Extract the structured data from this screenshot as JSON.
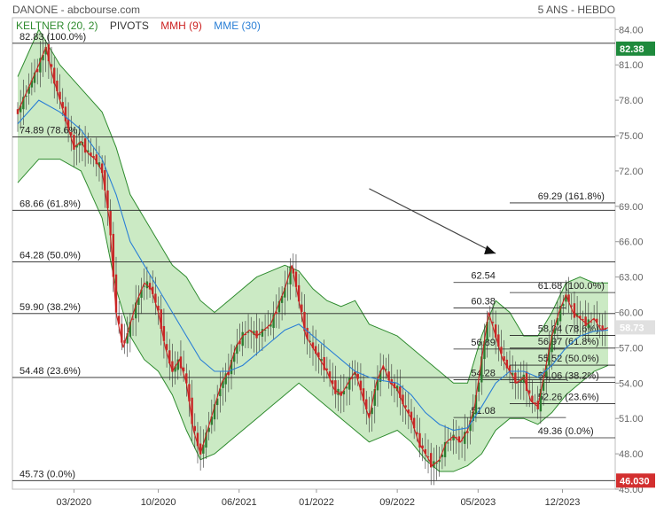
{
  "header": {
    "symbol": "DANONE - abcbourse.com",
    "period": "5 ANS - HEBDO"
  },
  "legend": {
    "keltner": "KELTNER (20, 2)",
    "pivots": "PIVOTS",
    "mmh": "MMH (9)",
    "mme": "MME (30)"
  },
  "colors": {
    "keltner_band": "#b9e3b0",
    "keltner_line": "#2e8b2e",
    "mmh": "#cc2222",
    "mme": "#2a7fd6",
    "candle_up": "#2e7d32",
    "candle_down": "#c62828",
    "tag_last": "#1e8a3c",
    "tag_low": "#d32f2f"
  },
  "chart_data": {
    "type": "line",
    "title": "DANONE",
    "y_ticks": [
      "84.00",
      "81.00",
      "78.00",
      "75.00",
      "72.00",
      "69.00",
      "66.00",
      "63.00",
      "60.00",
      "57.00",
      "54.00",
      "51.00",
      "48.00",
      "45.00"
    ],
    "x_ticks": [
      "03/2020",
      "10/2020",
      "06/2021",
      "01/2022",
      "09/2022",
      "05/2023",
      "12/2023"
    ],
    "ylim": [
      45,
      85
    ],
    "last_value_tag": "82.38",
    "current_tag": "58.73",
    "low_tag": "46.030",
    "fib_left": [
      {
        "label": "82.83 (100.0%)",
        "value": 82.83
      },
      {
        "label": "74.89 (78.6%)",
        "value": 74.89
      },
      {
        "label": "68.66 (61.8%)",
        "value": 68.66
      },
      {
        "label": "64.28 (50.0%)",
        "value": 64.28
      },
      {
        "label": "59.90 (38.2%)",
        "value": 59.9
      },
      {
        "label": "54.48 (23.6%)",
        "value": 54.48
      },
      {
        "label": "45.73 (0.0%)",
        "value": 45.73
      }
    ],
    "fib_right": [
      {
        "label": "69.29 (161.8%)",
        "value": 69.29
      },
      {
        "label": "61.68 (100.0%)",
        "value": 61.68
      },
      {
        "label": "58.04 (78.6%)",
        "value": 58.04
      },
      {
        "label": "56.97 (61.8%)",
        "value": 56.97
      },
      {
        "label": "55.52 (50.0%)",
        "value": 55.52
      },
      {
        "label": "54.06 (38.2%)",
        "value": 54.06
      },
      {
        "label": "52.26 (23.6%)",
        "value": 52.26
      },
      {
        "label": "49.36 (0.0%)",
        "value": 49.36
      }
    ],
    "pivots": [
      {
        "label": "62.54",
        "value": 62.54
      },
      {
        "label": "60.38",
        "value": 60.38
      },
      {
        "label": "56.89",
        "value": 56.89
      },
      {
        "label": "54.28",
        "value": 54.28
      },
      {
        "label": "51.08",
        "value": 51.08
      }
    ],
    "price_series": [
      [
        0,
        77
      ],
      [
        3,
        79
      ],
      [
        6,
        81
      ],
      [
        8,
        82.5
      ],
      [
        10,
        80
      ],
      [
        12,
        78
      ],
      [
        14,
        76
      ],
      [
        16,
        74
      ],
      [
        18,
        74.5
      ],
      [
        20,
        73.5
      ],
      [
        22,
        73
      ],
      [
        24,
        72
      ],
      [
        26,
        68
      ],
      [
        28,
        60
      ],
      [
        30,
        57
      ],
      [
        32,
        59
      ],
      [
        34,
        61
      ],
      [
        36,
        62.5
      ],
      [
        38,
        62
      ],
      [
        40,
        60
      ],
      [
        42,
        57
      ],
      [
        44,
        55
      ],
      [
        46,
        56
      ],
      [
        48,
        54
      ],
      [
        50,
        50
      ],
      [
        52,
        48
      ],
      [
        54,
        50
      ],
      [
        56,
        52
      ],
      [
        58,
        54
      ],
      [
        60,
        55
      ],
      [
        62,
        57
      ],
      [
        64,
        58
      ],
      [
        66,
        58.5
      ],
      [
        68,
        58
      ],
      [
        70,
        58.5
      ],
      [
        72,
        59
      ],
      [
        74,
        60.5
      ],
      [
        76,
        62
      ],
      [
        78,
        64
      ],
      [
        80,
        61
      ],
      [
        82,
        58
      ],
      [
        84,
        57
      ],
      [
        86,
        56
      ],
      [
        88,
        55
      ],
      [
        90,
        53.5
      ],
      [
        92,
        53
      ],
      [
        94,
        54
      ],
      [
        96,
        55
      ],
      [
        98,
        53
      ],
      [
        100,
        51
      ],
      [
        102,
        54
      ],
      [
        104,
        55.5
      ],
      [
        106,
        54
      ],
      [
        108,
        53.5
      ],
      [
        110,
        52
      ],
      [
        112,
        51
      ],
      [
        114,
        49
      ],
      [
        116,
        48
      ],
      [
        118,
        47
      ],
      [
        120,
        47.5
      ],
      [
        122,
        49
      ],
      [
        124,
        49.5
      ],
      [
        126,
        49
      ],
      [
        128,
        50
      ],
      [
        130,
        52
      ],
      [
        132,
        56
      ],
      [
        134,
        60
      ],
      [
        136,
        58
      ],
      [
        138,
        56
      ],
      [
        140,
        55
      ],
      [
        142,
        54
      ],
      [
        144,
        54.5
      ],
      [
        146,
        52.5
      ],
      [
        148,
        52
      ],
      [
        150,
        55
      ],
      [
        152,
        58
      ],
      [
        154,
        60
      ],
      [
        156,
        61.5
      ],
      [
        158,
        60
      ],
      [
        160,
        59.5
      ],
      [
        162,
        59
      ],
      [
        164,
        59.5
      ],
      [
        166,
        58.5
      ],
      [
        168,
        58.7
      ]
    ],
    "mme_series": [
      [
        0,
        76
      ],
      [
        6,
        78
      ],
      [
        12,
        77
      ],
      [
        18,
        75.5
      ],
      [
        24,
        73
      ],
      [
        28,
        70
      ],
      [
        32,
        66
      ],
      [
        36,
        64
      ],
      [
        40,
        62
      ],
      [
        44,
        60
      ],
      [
        48,
        58
      ],
      [
        52,
        56
      ],
      [
        56,
        55
      ],
      [
        60,
        55
      ],
      [
        64,
        55.5
      ],
      [
        68,
        56.5
      ],
      [
        72,
        57.5
      ],
      [
        76,
        58.5
      ],
      [
        80,
        59
      ],
      [
        84,
        58
      ],
      [
        88,
        57
      ],
      [
        92,
        56
      ],
      [
        96,
        55
      ],
      [
        100,
        54.5
      ],
      [
        104,
        54.2
      ],
      [
        108,
        54
      ],
      [
        112,
        53
      ],
      [
        116,
        51.5
      ],
      [
        120,
        50.5
      ],
      [
        124,
        50
      ],
      [
        128,
        50.2
      ],
      [
        132,
        52
      ],
      [
        136,
        54
      ],
      [
        140,
        55
      ],
      [
        144,
        55
      ],
      [
        148,
        54.5
      ],
      [
        152,
        55.5
      ],
      [
        156,
        57
      ],
      [
        160,
        58
      ],
      [
        164,
        58.4
      ],
      [
        168,
        58.5
      ]
    ],
    "band_upper": [
      [
        0,
        80
      ],
      [
        6,
        84
      ],
      [
        12,
        81
      ],
      [
        18,
        79
      ],
      [
        24,
        77
      ],
      [
        28,
        74
      ],
      [
        32,
        70
      ],
      [
        36,
        68
      ],
      [
        40,
        66
      ],
      [
        44,
        64
      ],
      [
        48,
        63
      ],
      [
        52,
        61
      ],
      [
        56,
        60
      ],
      [
        60,
        61
      ],
      [
        64,
        62
      ],
      [
        68,
        63
      ],
      [
        72,
        63.5
      ],
      [
        76,
        64
      ],
      [
        80,
        63.5
      ],
      [
        84,
        62
      ],
      [
        88,
        61
      ],
      [
        92,
        60.5
      ],
      [
        96,
        61
      ],
      [
        100,
        59
      ],
      [
        104,
        58.5
      ],
      [
        108,
        58
      ],
      [
        112,
        57
      ],
      [
        116,
        56
      ],
      [
        120,
        55
      ],
      [
        124,
        54
      ],
      [
        128,
        54
      ],
      [
        132,
        58
      ],
      [
        136,
        61
      ],
      [
        140,
        60
      ],
      [
        144,
        58
      ],
      [
        148,
        58
      ],
      [
        152,
        60
      ],
      [
        156,
        62.5
      ],
      [
        160,
        63
      ],
      [
        164,
        62.5
      ],
      [
        168,
        62.5
      ]
    ],
    "band_lower": [
      [
        0,
        71
      ],
      [
        6,
        73
      ],
      [
        12,
        73
      ],
      [
        18,
        72
      ],
      [
        24,
        68
      ],
      [
        28,
        62
      ],
      [
        32,
        58
      ],
      [
        36,
        56
      ],
      [
        40,
        55
      ],
      [
        44,
        53
      ],
      [
        48,
        50
      ],
      [
        52,
        47.5
      ],
      [
        56,
        48
      ],
      [
        60,
        49
      ],
      [
        64,
        50
      ],
      [
        68,
        51
      ],
      [
        72,
        52
      ],
      [
        76,
        53
      ],
      [
        80,
        54
      ],
      [
        84,
        53
      ],
      [
        88,
        52
      ],
      [
        92,
        51
      ],
      [
        96,
        50
      ],
      [
        100,
        49
      ],
      [
        104,
        49.5
      ],
      [
        108,
        50
      ],
      [
        112,
        49
      ],
      [
        116,
        47.5
      ],
      [
        120,
        46.5
      ],
      [
        124,
        46.5
      ],
      [
        128,
        47
      ],
      [
        132,
        48
      ],
      [
        136,
        50
      ],
      [
        140,
        51
      ],
      [
        144,
        51
      ],
      [
        148,
        50.5
      ],
      [
        152,
        51.5
      ],
      [
        156,
        53
      ],
      [
        160,
        54
      ],
      [
        164,
        55
      ],
      [
        168,
        55.5
      ]
    ]
  }
}
